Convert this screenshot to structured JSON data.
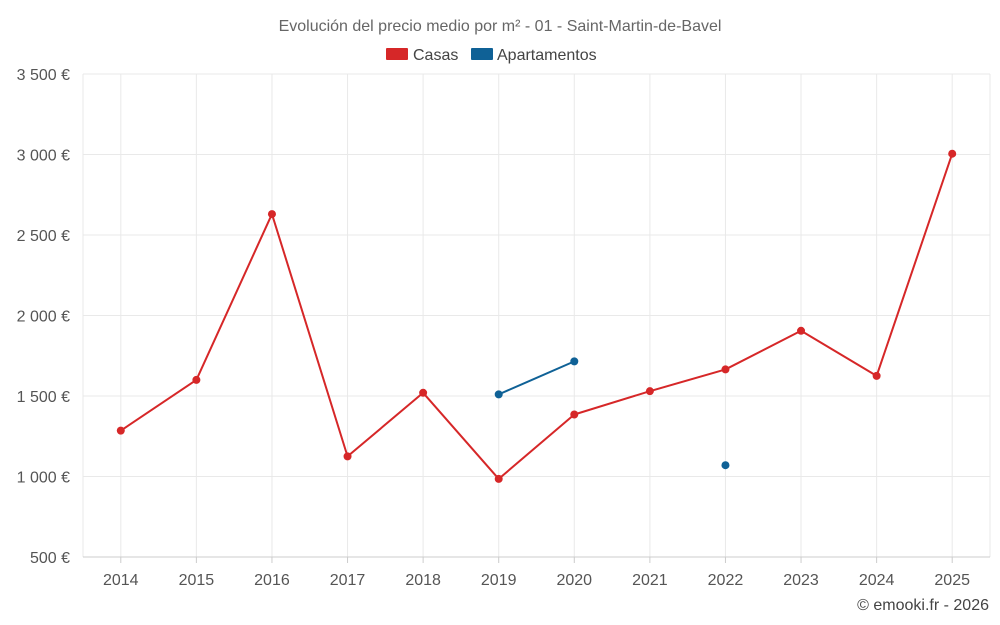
{
  "chart_data": {
    "type": "line",
    "title": "Evolución del precio medio por m² - 01 - Saint-Martin-de-Bavel",
    "categories": [
      "2014",
      "2015",
      "2016",
      "2017",
      "2018",
      "2019",
      "2020",
      "2021",
      "2022",
      "2023",
      "2024",
      "2025"
    ],
    "ylim": [
      500,
      3500
    ],
    "yticks": [
      500,
      1000,
      1500,
      2000,
      2500,
      3000,
      3500
    ],
    "ytick_labels": [
      "500 €",
      "1 000 €",
      "1 500 €",
      "2 000 €",
      "2 500 €",
      "3 000 €",
      "3 500 €"
    ],
    "grid": true,
    "legend_position": "top-center",
    "series": [
      {
        "name": "Casas",
        "color": "#d62728",
        "values": [
          1285,
          1600,
          2630,
          1125,
          1520,
          985,
          1385,
          1530,
          1665,
          1905,
          1625,
          3005
        ]
      },
      {
        "name": "Apartamentos",
        "color": "#0f6196",
        "values": [
          null,
          null,
          null,
          null,
          null,
          1510,
          1715,
          null,
          1070,
          null,
          null,
          null
        ]
      }
    ],
    "credit": "© emooki.fr - 2026"
  }
}
